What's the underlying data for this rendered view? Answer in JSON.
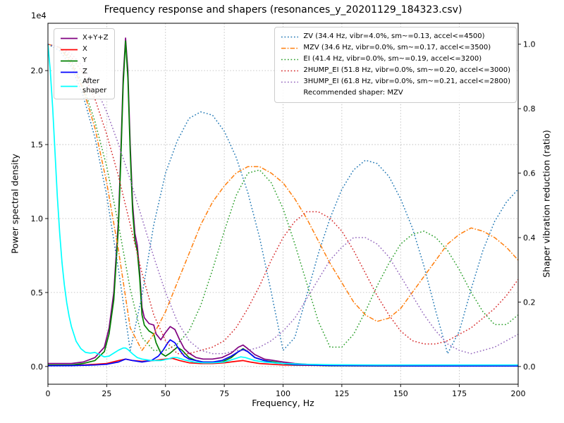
{
  "title": "Frequency response and shapers (resonances_y_20201129_184323.csv)",
  "axes": {
    "x": {
      "label": "Frequency, Hz",
      "ticks": [
        "0",
        "25",
        "50",
        "75",
        "100",
        "125",
        "150",
        "175",
        "200"
      ]
    },
    "y_left": {
      "label": "Power spectral density",
      "offset_text": "1e4",
      "ticks": [
        "0.0",
        "0.5",
        "1.0",
        "1.5",
        "2.0"
      ]
    },
    "y_right": {
      "label": "Shaper vibration reduction (ratio)",
      "ticks": [
        "0.0",
        "0.2",
        "0.4",
        "0.6",
        "0.8",
        "1.0"
      ]
    }
  },
  "legend_note": "Recommended shaper: MZV",
  "chart_data": {
    "type": "line",
    "title": "Frequency response and shapers (resonances_y_20201129_184323.csv)",
    "xlabel": "Frequency, Hz",
    "ylabel_left": "Power spectral density",
    "ylabel_right": "Shaper vibration reduction (ratio)",
    "y_left_scale": "1e4",
    "xlim": [
      0,
      200
    ],
    "ylim_left": [
      -0.12,
      2.32
    ],
    "ylim_right": [
      -0.055,
      1.065
    ],
    "x_ticks": [
      0,
      25,
      50,
      75,
      100,
      125,
      150,
      175,
      200
    ],
    "y_left_ticks": [
      0,
      0.5,
      1.0,
      1.5,
      2.0
    ],
    "y_right_ticks": [
      0,
      0.2,
      0.4,
      0.6,
      0.8,
      1.0
    ],
    "grid": true,
    "recommended_shaper": "MZV",
    "psd_series": [
      {
        "name": "X+Y+Z",
        "color": "#800080",
        "linestyle": "solid",
        "axis": "left",
        "points": [
          [
            0,
            0.02
          ],
          [
            5,
            0.02
          ],
          [
            10,
            0.02
          ],
          [
            15,
            0.03
          ],
          [
            20,
            0.06
          ],
          [
            24,
            0.13
          ],
          [
            26,
            0.26
          ],
          [
            28,
            0.5
          ],
          [
            30,
            1.0
          ],
          [
            31,
            1.45
          ],
          [
            32,
            1.95
          ],
          [
            33,
            2.22
          ],
          [
            34,
            2.0
          ],
          [
            35,
            1.5
          ],
          [
            36,
            1.1
          ],
          [
            37,
            0.9
          ],
          [
            38,
            0.82
          ],
          [
            39,
            0.64
          ],
          [
            40,
            0.4
          ],
          [
            41,
            0.33
          ],
          [
            43,
            0.29
          ],
          [
            45,
            0.28
          ],
          [
            46,
            0.22
          ],
          [
            48,
            0.18
          ],
          [
            50,
            0.23
          ],
          [
            52,
            0.27
          ],
          [
            54,
            0.25
          ],
          [
            56,
            0.18
          ],
          [
            58,
            0.12
          ],
          [
            60,
            0.09
          ],
          [
            63,
            0.06
          ],
          [
            66,
            0.05
          ],
          [
            70,
            0.05
          ],
          [
            74,
            0.06
          ],
          [
            78,
            0.09
          ],
          [
            81,
            0.13
          ],
          [
            83,
            0.145
          ],
          [
            85,
            0.12
          ],
          [
            88,
            0.08
          ],
          [
            92,
            0.05
          ],
          [
            96,
            0.04
          ],
          [
            100,
            0.03
          ],
          [
            105,
            0.02
          ],
          [
            110,
            0.015
          ],
          [
            120,
            0.01
          ],
          [
            140,
            0.008
          ],
          [
            160,
            0.006
          ],
          [
            180,
            0.005
          ],
          [
            200,
            0.005
          ]
        ]
      },
      {
        "name": "X",
        "color": "#ff0000",
        "linestyle": "solid",
        "axis": "left",
        "points": [
          [
            0,
            0.005
          ],
          [
            10,
            0.008
          ],
          [
            15,
            0.01
          ],
          [
            20,
            0.015
          ],
          [
            25,
            0.02
          ],
          [
            30,
            0.04
          ],
          [
            33,
            0.05
          ],
          [
            36,
            0.04
          ],
          [
            40,
            0.035
          ],
          [
            45,
            0.04
          ],
          [
            50,
            0.05
          ],
          [
            53,
            0.055
          ],
          [
            56,
            0.04
          ],
          [
            60,
            0.025
          ],
          [
            65,
            0.02
          ],
          [
            70,
            0.02
          ],
          [
            75,
            0.025
          ],
          [
            80,
            0.035
          ],
          [
            83,
            0.04
          ],
          [
            86,
            0.03
          ],
          [
            90,
            0.02
          ],
          [
            95,
            0.015
          ],
          [
            100,
            0.01
          ],
          [
            110,
            0.008
          ],
          [
            130,
            0.005
          ],
          [
            160,
            0.004
          ],
          [
            200,
            0.004
          ]
        ]
      },
      {
        "name": "Y",
        "color": "#008000",
        "linestyle": "solid",
        "axis": "left",
        "points": [
          [
            0,
            0.01
          ],
          [
            5,
            0.01
          ],
          [
            10,
            0.01
          ],
          [
            15,
            0.02
          ],
          [
            20,
            0.04
          ],
          [
            24,
            0.1
          ],
          [
            26,
            0.22
          ],
          [
            28,
            0.45
          ],
          [
            30,
            0.95
          ],
          [
            31,
            1.4
          ],
          [
            32,
            1.9
          ],
          [
            33,
            2.2
          ],
          [
            34,
            1.95
          ],
          [
            35,
            1.45
          ],
          [
            36,
            1.05
          ],
          [
            37,
            0.85
          ],
          [
            38,
            0.78
          ],
          [
            39,
            0.6
          ],
          [
            40,
            0.35
          ],
          [
            41,
            0.28
          ],
          [
            43,
            0.24
          ],
          [
            45,
            0.22
          ],
          [
            46,
            0.16
          ],
          [
            48,
            0.09
          ],
          [
            50,
            0.07
          ],
          [
            52,
            0.09
          ],
          [
            55,
            0.13
          ],
          [
            57,
            0.11
          ],
          [
            60,
            0.06
          ],
          [
            63,
            0.04
          ],
          [
            66,
            0.03
          ],
          [
            70,
            0.03
          ],
          [
            74,
            0.03
          ],
          [
            78,
            0.06
          ],
          [
            81,
            0.1
          ],
          [
            83,
            0.12
          ],
          [
            85,
            0.1
          ],
          [
            88,
            0.06
          ],
          [
            92,
            0.04
          ],
          [
            96,
            0.03
          ],
          [
            100,
            0.02
          ],
          [
            105,
            0.01
          ],
          [
            110,
            0.01
          ],
          [
            120,
            0.005
          ],
          [
            140,
            0.004
          ],
          [
            160,
            0.003
          ],
          [
            180,
            0.003
          ],
          [
            200,
            0.003
          ]
        ]
      },
      {
        "name": "Z",
        "color": "#0000ff",
        "linestyle": "solid",
        "axis": "left",
        "points": [
          [
            0,
            0.005
          ],
          [
            10,
            0.006
          ],
          [
            20,
            0.01
          ],
          [
            25,
            0.015
          ],
          [
            30,
            0.03
          ],
          [
            33,
            0.05
          ],
          [
            36,
            0.04
          ],
          [
            40,
            0.03
          ],
          [
            44,
            0.04
          ],
          [
            47,
            0.07
          ],
          [
            49,
            0.11
          ],
          [
            51,
            0.16
          ],
          [
            52,
            0.18
          ],
          [
            54,
            0.16
          ],
          [
            56,
            0.11
          ],
          [
            58,
            0.07
          ],
          [
            60,
            0.05
          ],
          [
            63,
            0.04
          ],
          [
            66,
            0.03
          ],
          [
            70,
            0.03
          ],
          [
            74,
            0.04
          ],
          [
            78,
            0.07
          ],
          [
            81,
            0.1
          ],
          [
            83,
            0.115
          ],
          [
            85,
            0.1
          ],
          [
            88,
            0.06
          ],
          [
            92,
            0.04
          ],
          [
            96,
            0.025
          ],
          [
            100,
            0.02
          ],
          [
            105,
            0.012
          ],
          [
            110,
            0.01
          ],
          [
            120,
            0.007
          ],
          [
            140,
            0.005
          ],
          [
            160,
            0.004
          ],
          [
            180,
            0.004
          ],
          [
            200,
            0.004
          ]
        ]
      },
      {
        "name": "After\nshaper",
        "color": "#00ffff",
        "linestyle": "solid",
        "axis": "left",
        "points": [
          [
            0,
            2.18
          ],
          [
            1,
            2.0
          ],
          [
            2,
            1.75
          ],
          [
            3,
            1.45
          ],
          [
            4,
            1.15
          ],
          [
            5,
            0.9
          ],
          [
            6,
            0.7
          ],
          [
            7,
            0.55
          ],
          [
            8,
            0.43
          ],
          [
            9,
            0.34
          ],
          [
            10,
            0.27
          ],
          [
            12,
            0.17
          ],
          [
            14,
            0.12
          ],
          [
            16,
            0.095
          ],
          [
            18,
            0.09
          ],
          [
            20,
            0.095
          ],
          [
            22,
            0.08
          ],
          [
            24,
            0.065
          ],
          [
            26,
            0.07
          ],
          [
            28,
            0.09
          ],
          [
            30,
            0.11
          ],
          [
            32,
            0.125
          ],
          [
            33,
            0.125
          ],
          [
            34,
            0.115
          ],
          [
            36,
            0.085
          ],
          [
            38,
            0.06
          ],
          [
            40,
            0.05
          ],
          [
            44,
            0.04
          ],
          [
            48,
            0.04
          ],
          [
            51,
            0.05
          ],
          [
            53,
            0.06
          ],
          [
            55,
            0.06
          ],
          [
            58,
            0.045
          ],
          [
            62,
            0.03
          ],
          [
            66,
            0.025
          ],
          [
            70,
            0.025
          ],
          [
            75,
            0.03
          ],
          [
            79,
            0.05
          ],
          [
            82,
            0.065
          ],
          [
            84,
            0.06
          ],
          [
            88,
            0.04
          ],
          [
            92,
            0.03
          ],
          [
            96,
            0.025
          ],
          [
            100,
            0.02
          ],
          [
            110,
            0.015
          ],
          [
            120,
            0.012
          ],
          [
            140,
            0.01
          ],
          [
            160,
            0.01
          ],
          [
            180,
            0.01
          ],
          [
            200,
            0.01
          ]
        ]
      }
    ],
    "shaper_x": [
      0,
      5,
      10,
      15,
      20,
      25,
      30,
      35,
      40,
      45,
      50,
      55,
      60,
      65,
      70,
      75,
      80,
      85,
      90,
      95,
      100,
      105,
      110,
      115,
      120,
      125,
      130,
      135,
      140,
      145,
      150,
      155,
      160,
      165,
      170,
      175,
      180,
      185,
      190,
      195,
      200
    ],
    "shaper_series": [
      {
        "name": "ZV",
        "label": "ZV (34.4 Hz, vibr=4.0%, sm~=0.13, accel<=4500)",
        "freq": 34.4,
        "vibr_pct": 4.0,
        "smoothing": 0.13,
        "max_accel": 4500,
        "color": "#1f77b4",
        "linestyle": "dotted",
        "axis": "right",
        "values": [
          1.0,
          0.98,
          0.93,
          0.84,
          0.71,
          0.53,
          0.3,
          0.05,
          0.22,
          0.44,
          0.6,
          0.7,
          0.77,
          0.79,
          0.78,
          0.73,
          0.65,
          0.54,
          0.4,
          0.23,
          0.05,
          0.09,
          0.22,
          0.35,
          0.46,
          0.55,
          0.61,
          0.64,
          0.63,
          0.59,
          0.52,
          0.43,
          0.31,
          0.17,
          0.04,
          0.11,
          0.24,
          0.36,
          0.45,
          0.51,
          0.55
        ]
      },
      {
        "name": "MZV",
        "label": "MZV (34.6 Hz, vibr=0.0%, sm~=0.17, accel<=3500)",
        "freq": 34.6,
        "vibr_pct": 0.0,
        "smoothing": 0.17,
        "max_accel": 3500,
        "color": "#ff7f0e",
        "linestyle": "dashdot",
        "axis": "right",
        "values": [
          1.0,
          0.99,
          0.94,
          0.86,
          0.74,
          0.57,
          0.36,
          0.12,
          0.05,
          0.1,
          0.17,
          0.26,
          0.35,
          0.44,
          0.51,
          0.56,
          0.6,
          0.62,
          0.62,
          0.6,
          0.57,
          0.52,
          0.46,
          0.39,
          0.32,
          0.26,
          0.2,
          0.16,
          0.14,
          0.15,
          0.18,
          0.23,
          0.28,
          0.33,
          0.38,
          0.41,
          0.43,
          0.42,
          0.4,
          0.37,
          0.33
        ]
      },
      {
        "name": "EI",
        "label": "EI (41.4 Hz, vibr=0.0%, sm~=0.19, accel<=3200)",
        "freq": 41.4,
        "vibr_pct": 0.0,
        "smoothing": 0.19,
        "max_accel": 3200,
        "color": "#2ca02c",
        "linestyle": "dotted",
        "axis": "right",
        "values": [
          1.0,
          0.99,
          0.95,
          0.87,
          0.76,
          0.62,
          0.44,
          0.24,
          0.09,
          0.05,
          0.05,
          0.07,
          0.11,
          0.19,
          0.3,
          0.42,
          0.53,
          0.6,
          0.61,
          0.57,
          0.49,
          0.38,
          0.26,
          0.14,
          0.06,
          0.06,
          0.1,
          0.17,
          0.25,
          0.32,
          0.38,
          0.41,
          0.42,
          0.4,
          0.36,
          0.3,
          0.23,
          0.17,
          0.13,
          0.13,
          0.16
        ]
      },
      {
        "name": "2HUMP_EI",
        "label": "2HUMP_EI (51.8 Hz, vibr=0.0%, sm~=0.20, accel<=3000)",
        "freq": 51.8,
        "vibr_pct": 0.0,
        "smoothing": 0.2,
        "max_accel": 3000,
        "color": "#d62728",
        "linestyle": "dotted",
        "axis": "right",
        "values": [
          1.0,
          0.99,
          0.96,
          0.91,
          0.83,
          0.72,
          0.59,
          0.44,
          0.29,
          0.16,
          0.08,
          0.04,
          0.04,
          0.05,
          0.06,
          0.08,
          0.12,
          0.18,
          0.25,
          0.33,
          0.4,
          0.45,
          0.48,
          0.48,
          0.46,
          0.42,
          0.36,
          0.29,
          0.22,
          0.16,
          0.11,
          0.08,
          0.07,
          0.07,
          0.08,
          0.1,
          0.12,
          0.15,
          0.18,
          0.22,
          0.27
        ]
      },
      {
        "name": "3HUMP_EI",
        "label": "3HUMP_EI (61.8 Hz, vibr=0.0%, sm~=0.21, accel<=2800)",
        "freq": 61.8,
        "vibr_pct": 0.0,
        "smoothing": 0.21,
        "max_accel": 2800,
        "color": "#9467bd",
        "linestyle": "dotted",
        "axis": "right",
        "values": [
          1.0,
          0.99,
          0.97,
          0.93,
          0.87,
          0.79,
          0.69,
          0.58,
          0.46,
          0.34,
          0.23,
          0.14,
          0.08,
          0.05,
          0.04,
          0.04,
          0.05,
          0.05,
          0.06,
          0.08,
          0.11,
          0.15,
          0.21,
          0.27,
          0.33,
          0.37,
          0.4,
          0.4,
          0.38,
          0.34,
          0.28,
          0.22,
          0.16,
          0.11,
          0.07,
          0.05,
          0.04,
          0.05,
          0.06,
          0.08,
          0.1
        ]
      }
    ]
  }
}
